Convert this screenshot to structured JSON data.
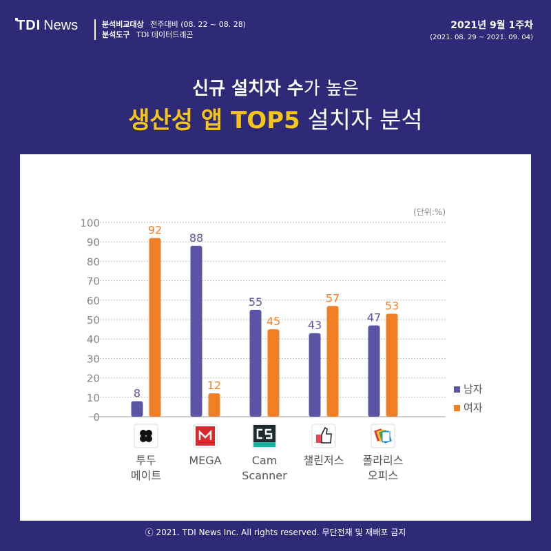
{
  "header": {
    "logo_mark": "TDI",
    "logo_word": "News",
    "meta_label_1": "분석비교대상",
    "meta_value_1": "전주대비 (08. 22 ~ 08. 28)",
    "meta_label_2": "분석도구",
    "meta_value_2": "TDI 데이터드래곤",
    "week": "2021년 9월 1주차",
    "week_range": "(2021. 08. 29 ~ 2021. 09. 04)"
  },
  "title": {
    "line1_strong": "신규 설치자 수",
    "line1_rest": "가 높은",
    "line2_yellow": "생산성 앱 TOP5",
    "line2_white": " 설치자 분석"
  },
  "footer": {
    "copyright": "ⓒ 2021. TDI News Inc. All rights reserved. 무단전재 및 재배포 금지"
  },
  "chart_data": {
    "type": "bar",
    "unit_label": "(단위:%)",
    "categories": [
      "투두\n메이트",
      "MEGA",
      "Cam\nScanner",
      "챌린저스",
      "폴라리스\n오피스"
    ],
    "app_icons": [
      "todo-mate-icon",
      "mega-icon",
      "camscanner-icon",
      "challengers-icon",
      "polaris-office-icon"
    ],
    "series": [
      {
        "name": "남자",
        "values": [
          8,
          88,
          55,
          43,
          47
        ],
        "color": "#5b53a3"
      },
      {
        "name": "여자",
        "values": [
          92,
          12,
          45,
          57,
          53
        ],
        "color": "#f07f26"
      }
    ],
    "ylim": [
      0,
      100
    ],
    "yticks": [
      0,
      10,
      20,
      30,
      40,
      50,
      60,
      70,
      80,
      90,
      100
    ],
    "grid": true,
    "legend": "right"
  }
}
